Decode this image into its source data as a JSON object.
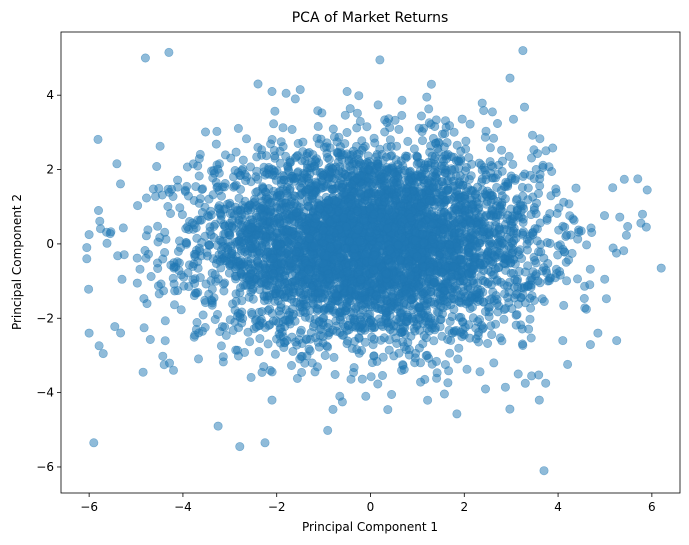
{
  "chart_data": {
    "type": "scatter",
    "title": "PCA of Market Returns",
    "xlabel": "Principal Component 1",
    "ylabel": "Principal Component 2",
    "xlim": [
      -6.6,
      6.6
    ],
    "ylim": [
      -6.7,
      5.7
    ],
    "xticks": [
      -6,
      -4,
      -2,
      0,
      2,
      4,
      6
    ],
    "yticks": [
      -6,
      -4,
      -2,
      0,
      2,
      4
    ],
    "grid": false,
    "legend": "none",
    "marker_color": "#1f77b4",
    "marker_alpha": 0.5,
    "approx_point_count": 5000,
    "distribution": {
      "center": [
        0.0,
        0.0
      ],
      "std": [
        1.8,
        1.3
      ]
    },
    "outliers": [
      {
        "x": -4.8,
        "y": 5.0
      },
      {
        "x": -4.3,
        "y": 5.15
      },
      {
        "x": 0.2,
        "y": 4.95
      },
      {
        "x": 3.25,
        "y": 5.2
      },
      {
        "x": -2.4,
        "y": 4.3
      },
      {
        "x": -2.1,
        "y": 4.1
      },
      {
        "x": -1.8,
        "y": 4.05
      },
      {
        "x": -1.5,
        "y": 4.15
      },
      {
        "x": -0.5,
        "y": 4.1
      },
      {
        "x": 1.2,
        "y": 3.95
      },
      {
        "x": 2.6,
        "y": 3.55
      },
      {
        "x": -6.05,
        "y": -0.4
      },
      {
        "x": -6.05,
        "y": -0.1
      },
      {
        "x": -6.0,
        "y": 0.25
      },
      {
        "x": -5.8,
        "y": 0.9
      },
      {
        "x": 6.2,
        "y": -0.65
      },
      {
        "x": 5.9,
        "y": 1.45
      },
      {
        "x": 5.8,
        "y": 0.8
      },
      {
        "x": 5.7,
        "y": 1.75
      },
      {
        "x": -6.0,
        "y": -2.4
      },
      {
        "x": -5.7,
        "y": -2.95
      },
      {
        "x": -5.9,
        "y": -5.35
      },
      {
        "x": -3.25,
        "y": -4.9
      },
      {
        "x": -2.25,
        "y": -5.35
      },
      {
        "x": 3.7,
        "y": -6.1
      },
      {
        "x": 3.6,
        "y": -4.2
      },
      {
        "x": -2.1,
        "y": -4.2
      },
      {
        "x": -0.8,
        "y": -4.45
      },
      {
        "x": -0.6,
        "y": -4.25
      },
      {
        "x": -0.1,
        "y": -4.1
      },
      {
        "x": 0.45,
        "y": -4.05
      },
      {
        "x": 3.3,
        "y": -3.75
      },
      {
        "x": 3.15,
        "y": -3.5
      },
      {
        "x": -4.85,
        "y": -3.45
      },
      {
        "x": -4.2,
        "y": -3.4
      },
      {
        "x": -4.4,
        "y": -3.25
      },
      {
        "x": 4.1,
        "y": -2.6
      },
      {
        "x": 5.25,
        "y": -2.6
      },
      {
        "x": 4.85,
        "y": -2.4
      }
    ]
  }
}
